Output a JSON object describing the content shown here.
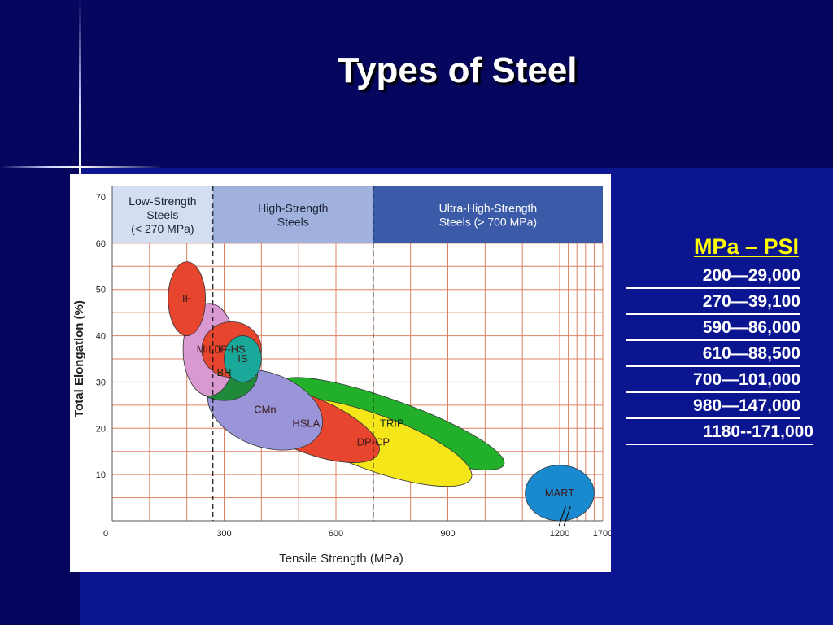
{
  "slide": {
    "title": "Types of Steel"
  },
  "conversion": {
    "header": "MPa – PSI",
    "rows": [
      "200—29,000",
      "270—39,100",
      "590—86,000",
      "610—88,500",
      "700—101,000",
      "980—147,000",
      "1180--171,000"
    ]
  },
  "colors": {
    "header_band": "#3b5aa8",
    "grid": "#e08060",
    "IF": "#e8452e",
    "MILD": "#d898d0",
    "IF-HS": "#e8452e",
    "IS": "#1aa89a",
    "BH": "#1f8a3a",
    "CMn": "#9a94d8",
    "HSLA": "#e8452e",
    "TRIP": "#22b02a",
    "DP-CP": "#f5e61a",
    "MART": "#1a8ad0"
  },
  "chart_data": {
    "type": "scatter",
    "title": "",
    "xlabel": "Tensile Strength (MPa)",
    "ylabel": "Total Elongation (%)",
    "xlim": [
      0,
      1700
    ],
    "ylim": [
      0,
      70
    ],
    "x_tick_labels": [
      "0",
      "300",
      "600",
      "900",
      "1200",
      "1700"
    ],
    "y_tick_labels": [
      "10",
      "20",
      "30",
      "40",
      "50",
      "60",
      "70"
    ],
    "axis_break_after": 1200,
    "zones": [
      {
        "label": "Low-Strength Steels (< 270 MPa)",
        "lines": [
          "Low-Strength",
          "Steels",
          "(< 270 MPa)"
        ],
        "from": 0,
        "to": 270
      },
      {
        "label": "High-Strength Steels",
        "lines": [
          "High-Strength",
          "Steels"
        ],
        "from": 270,
        "to": 700
      },
      {
        "label": "Ultra-High-Strength Steels (> 700 MPa)",
        "lines": [
          "Ultra-High-Strength",
          "Steels (> 700 MPa)"
        ],
        "from": 700,
        "to": 1700
      }
    ],
    "zone_boundaries": [
      270,
      700
    ],
    "regions": [
      {
        "name": "MART",
        "cx": 1200,
        "cy": 6,
        "rx": 400,
        "ry": 6,
        "angle": 0
      },
      {
        "name": "TRIP",
        "cx": 750,
        "cy": 21,
        "rx": 320,
        "ry": 5,
        "angle": 20
      },
      {
        "name": "DP-CP",
        "cx": 700,
        "cy": 17,
        "rx": 280,
        "ry": 6,
        "angle": 20
      },
      {
        "name": "HSLA",
        "cx": 520,
        "cy": 21,
        "rx": 210,
        "ry": 6,
        "angle": 22
      },
      {
        "name": "CMn",
        "cx": 410,
        "cy": 24,
        "rx": 160,
        "ry": 8,
        "angle": 20
      },
      {
        "name": "BH",
        "cx": 300,
        "cy": 32,
        "rx": 90,
        "ry": 6,
        "angle": 0
      },
      {
        "name": "MILD",
        "cx": 260,
        "cy": 37,
        "rx": 70,
        "ry": 10,
        "angle": 0
      },
      {
        "name": "IF-HS",
        "cx": 320,
        "cy": 37,
        "rx": 80,
        "ry": 6,
        "angle": 0
      },
      {
        "name": "IS",
        "cx": 350,
        "cy": 35,
        "rx": 50,
        "ry": 5,
        "angle": 0
      },
      {
        "name": "IF",
        "cx": 200,
        "cy": 48,
        "rx": 50,
        "ry": 8,
        "angle": 0
      }
    ]
  }
}
